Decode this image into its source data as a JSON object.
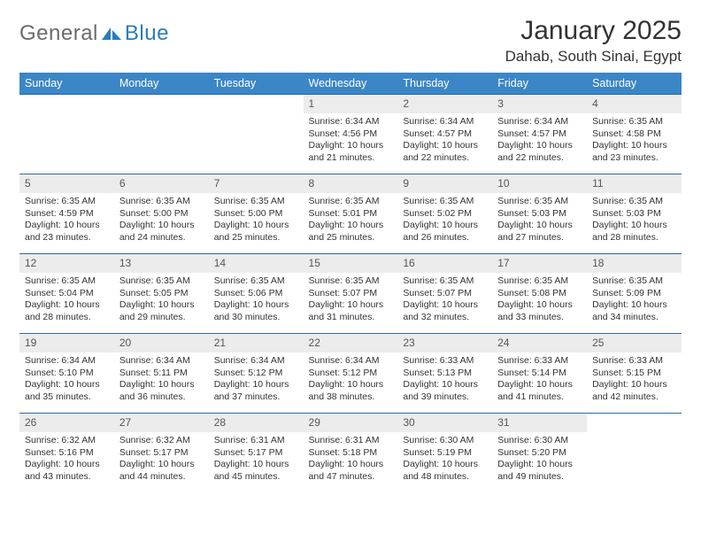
{
  "logo": {
    "text1": "General",
    "text2": "Blue"
  },
  "title": "January 2025",
  "location": "Dahab, South Sinai, Egypt",
  "colors": {
    "header_bg": "#3b86c6",
    "header_text": "#ffffff",
    "daynum_bg": "#ececec",
    "row_divider": "#2a6aa3",
    "logo_gray": "#6b6b6b",
    "logo_blue": "#2a7cbf"
  },
  "daysOfWeek": [
    "Sunday",
    "Monday",
    "Tuesday",
    "Wednesday",
    "Thursday",
    "Friday",
    "Saturday"
  ],
  "weeks": [
    [
      {
        "n": "",
        "lines": []
      },
      {
        "n": "",
        "lines": []
      },
      {
        "n": "",
        "lines": []
      },
      {
        "n": "1",
        "lines": [
          "Sunrise: 6:34 AM",
          "Sunset: 4:56 PM",
          "Daylight: 10 hours and 21 minutes."
        ]
      },
      {
        "n": "2",
        "lines": [
          "Sunrise: 6:34 AM",
          "Sunset: 4:57 PM",
          "Daylight: 10 hours and 22 minutes."
        ]
      },
      {
        "n": "3",
        "lines": [
          "Sunrise: 6:34 AM",
          "Sunset: 4:57 PM",
          "Daylight: 10 hours and 22 minutes."
        ]
      },
      {
        "n": "4",
        "lines": [
          "Sunrise: 6:35 AM",
          "Sunset: 4:58 PM",
          "Daylight: 10 hours and 23 minutes."
        ]
      }
    ],
    [
      {
        "n": "5",
        "lines": [
          "Sunrise: 6:35 AM",
          "Sunset: 4:59 PM",
          "Daylight: 10 hours and 23 minutes."
        ]
      },
      {
        "n": "6",
        "lines": [
          "Sunrise: 6:35 AM",
          "Sunset: 5:00 PM",
          "Daylight: 10 hours and 24 minutes."
        ]
      },
      {
        "n": "7",
        "lines": [
          "Sunrise: 6:35 AM",
          "Sunset: 5:00 PM",
          "Daylight: 10 hours and 25 minutes."
        ]
      },
      {
        "n": "8",
        "lines": [
          "Sunrise: 6:35 AM",
          "Sunset: 5:01 PM",
          "Daylight: 10 hours and 25 minutes."
        ]
      },
      {
        "n": "9",
        "lines": [
          "Sunrise: 6:35 AM",
          "Sunset: 5:02 PM",
          "Daylight: 10 hours and 26 minutes."
        ]
      },
      {
        "n": "10",
        "lines": [
          "Sunrise: 6:35 AM",
          "Sunset: 5:03 PM",
          "Daylight: 10 hours and 27 minutes."
        ]
      },
      {
        "n": "11",
        "lines": [
          "Sunrise: 6:35 AM",
          "Sunset: 5:03 PM",
          "Daylight: 10 hours and 28 minutes."
        ]
      }
    ],
    [
      {
        "n": "12",
        "lines": [
          "Sunrise: 6:35 AM",
          "Sunset: 5:04 PM",
          "Daylight: 10 hours and 28 minutes."
        ]
      },
      {
        "n": "13",
        "lines": [
          "Sunrise: 6:35 AM",
          "Sunset: 5:05 PM",
          "Daylight: 10 hours and 29 minutes."
        ]
      },
      {
        "n": "14",
        "lines": [
          "Sunrise: 6:35 AM",
          "Sunset: 5:06 PM",
          "Daylight: 10 hours and 30 minutes."
        ]
      },
      {
        "n": "15",
        "lines": [
          "Sunrise: 6:35 AM",
          "Sunset: 5:07 PM",
          "Daylight: 10 hours and 31 minutes."
        ]
      },
      {
        "n": "16",
        "lines": [
          "Sunrise: 6:35 AM",
          "Sunset: 5:07 PM",
          "Daylight: 10 hours and 32 minutes."
        ]
      },
      {
        "n": "17",
        "lines": [
          "Sunrise: 6:35 AM",
          "Sunset: 5:08 PM",
          "Daylight: 10 hours and 33 minutes."
        ]
      },
      {
        "n": "18",
        "lines": [
          "Sunrise: 6:35 AM",
          "Sunset: 5:09 PM",
          "Daylight: 10 hours and 34 minutes."
        ]
      }
    ],
    [
      {
        "n": "19",
        "lines": [
          "Sunrise: 6:34 AM",
          "Sunset: 5:10 PM",
          "Daylight: 10 hours and 35 minutes."
        ]
      },
      {
        "n": "20",
        "lines": [
          "Sunrise: 6:34 AM",
          "Sunset: 5:11 PM",
          "Daylight: 10 hours and 36 minutes."
        ]
      },
      {
        "n": "21",
        "lines": [
          "Sunrise: 6:34 AM",
          "Sunset: 5:12 PM",
          "Daylight: 10 hours and 37 minutes."
        ]
      },
      {
        "n": "22",
        "lines": [
          "Sunrise: 6:34 AM",
          "Sunset: 5:12 PM",
          "Daylight: 10 hours and 38 minutes."
        ]
      },
      {
        "n": "23",
        "lines": [
          "Sunrise: 6:33 AM",
          "Sunset: 5:13 PM",
          "Daylight: 10 hours and 39 minutes."
        ]
      },
      {
        "n": "24",
        "lines": [
          "Sunrise: 6:33 AM",
          "Sunset: 5:14 PM",
          "Daylight: 10 hours and 41 minutes."
        ]
      },
      {
        "n": "25",
        "lines": [
          "Sunrise: 6:33 AM",
          "Sunset: 5:15 PM",
          "Daylight: 10 hours and 42 minutes."
        ]
      }
    ],
    [
      {
        "n": "26",
        "lines": [
          "Sunrise: 6:32 AM",
          "Sunset: 5:16 PM",
          "Daylight: 10 hours and 43 minutes."
        ]
      },
      {
        "n": "27",
        "lines": [
          "Sunrise: 6:32 AM",
          "Sunset: 5:17 PM",
          "Daylight: 10 hours and 44 minutes."
        ]
      },
      {
        "n": "28",
        "lines": [
          "Sunrise: 6:31 AM",
          "Sunset: 5:17 PM",
          "Daylight: 10 hours and 45 minutes."
        ]
      },
      {
        "n": "29",
        "lines": [
          "Sunrise: 6:31 AM",
          "Sunset: 5:18 PM",
          "Daylight: 10 hours and 47 minutes."
        ]
      },
      {
        "n": "30",
        "lines": [
          "Sunrise: 6:30 AM",
          "Sunset: 5:19 PM",
          "Daylight: 10 hours and 48 minutes."
        ]
      },
      {
        "n": "31",
        "lines": [
          "Sunrise: 6:30 AM",
          "Sunset: 5:20 PM",
          "Daylight: 10 hours and 49 minutes."
        ]
      },
      {
        "n": "",
        "lines": []
      }
    ]
  ]
}
